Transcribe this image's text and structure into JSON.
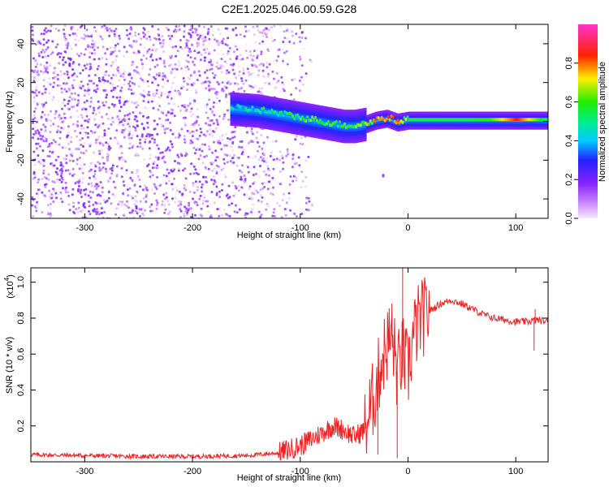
{
  "figure_title": "C2E1.2025.046.00.59.G28",
  "chart_data": [
    {
      "type": "heatmap",
      "xlabel": "Height of straight line (km)",
      "ylabel": "Frequency (Hz)",
      "xlim": [
        -350,
        130
      ],
      "ylim": [
        -50,
        50
      ],
      "xticks": [
        -300,
        -200,
        -100,
        0,
        100
      ],
      "xtick_labels": [
        "-300",
        "-200",
        "-100",
        "0",
        "100"
      ],
      "yticks": [
        -40,
        -20,
        0,
        20,
        40
      ],
      "ytick_labels": [
        "-40",
        "-20",
        "0",
        "20",
        "40"
      ],
      "colorbar": {
        "label": "Normalized spectral amplitude",
        "range": [
          0,
          1
        ],
        "ticks": [
          0.0,
          0.2,
          0.4,
          0.6,
          0.8
        ],
        "tick_labels": [
          "0.0",
          "0.2",
          "0.4",
          "0.6",
          "0.8"
        ],
        "colormap": [
          "#f5e8ff",
          "#9933ff",
          "#2222ff",
          "#00ddff",
          "#00ee44",
          "#ffee00",
          "#ff0000",
          "#ff33cc"
        ]
      },
      "ridge": {
        "x": [
          -165,
          -140,
          -120,
          -100,
          -80,
          -60,
          -50,
          -40,
          -30,
          -20,
          -10,
          0,
          25,
          50,
          75,
          100,
          130
        ],
        "y": [
          7,
          6,
          4,
          2,
          0,
          -2,
          -2,
          -1,
          1,
          2,
          0,
          1,
          1,
          1,
          1,
          1,
          1
        ],
        "amplitude": [
          0.4,
          0.45,
          0.5,
          0.55,
          0.6,
          0.55,
          0.6,
          0.7,
          0.75,
          0.8,
          0.85,
          0.55,
          0.55,
          0.55,
          0.6,
          0.85,
          0.5
        ]
      },
      "noise_region": {
        "x_from": -350,
        "x_to": -110,
        "amplitude_range": [
          0.0,
          0.2
        ]
      },
      "isolated_point": {
        "x": -23,
        "y": -28,
        "amplitude": 0.05
      }
    },
    {
      "type": "line",
      "xlabel": "Height of straight line (km)",
      "ylabel": "SNR (10 * v/v)",
      "yscale_label": "(x10",
      "yscale_exponent": "4",
      "yscale_suffix": ")",
      "xlim": [
        -350,
        130
      ],
      "ylim": [
        0,
        1.08
      ],
      "xticks": [
        -300,
        -200,
        -100,
        0,
        100
      ],
      "xtick_labels": [
        "-300",
        "-200",
        "-100",
        "0",
        "100"
      ],
      "yticks": [
        0.2,
        0.4,
        0.6,
        0.8,
        1.0
      ],
      "ytick_labels": [
        "0.2",
        "0.4",
        "0.6",
        "0.8",
        "1.0"
      ],
      "series": [
        {
          "color": "#ee2222",
          "x": [
            -350,
            -300,
            -250,
            -200,
            -150,
            -120,
            -100,
            -80,
            -70,
            -60,
            -50,
            -40,
            -30,
            -25,
            -20,
            -15,
            -10,
            -5,
            0,
            5,
            10,
            20,
            30,
            40,
            50,
            60,
            70,
            80,
            90,
            100,
            110,
            120,
            130
          ],
          "y": [
            0.04,
            0.035,
            0.03,
            0.03,
            0.035,
            0.05,
            0.09,
            0.16,
            0.2,
            0.18,
            0.14,
            0.18,
            0.4,
            0.55,
            0.65,
            0.7,
            0.5,
            0.6,
            0.5,
            0.7,
            0.78,
            0.84,
            0.88,
            0.9,
            0.88,
            0.85,
            0.82,
            0.8,
            0.79,
            0.78,
            0.78,
            0.79,
            0.78
          ],
          "spikes": [
            {
              "x": -5,
              "y": 1.08
            },
            {
              "x": -15,
              "y": 0.88
            },
            {
              "x": -10,
              "y": 0.02
            },
            {
              "x": -28,
              "y": 0.04
            },
            {
              "x": 118,
              "y": 0.85
            },
            {
              "x": 117,
              "y": 0.62
            }
          ]
        }
      ]
    }
  ]
}
